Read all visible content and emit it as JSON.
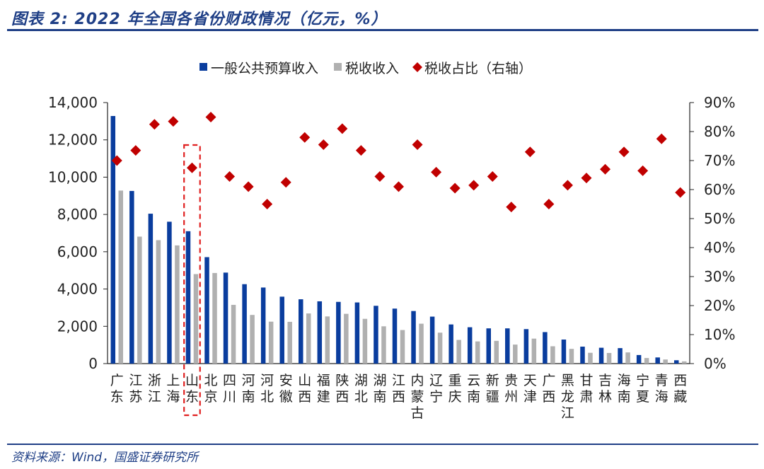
{
  "title": "图表 2:  2022 年全国各省份财政情况（亿元，%）",
  "source": "资料来源：Wind，国盛证券研究所",
  "colors": {
    "brand": "#1f3f86",
    "bar_budget": "#0a3d9e",
    "bar_tax": "#b0b0b0",
    "marker_ratio": "#c00000",
    "highlight_box": "#e02020"
  },
  "chart_data": {
    "type": "bar",
    "categories": [
      "广东",
      "江苏",
      "浙江",
      "上海",
      "山东",
      "北京",
      "四川",
      "河南",
      "河北",
      "安徽",
      "山西",
      "福建",
      "陕西",
      "湖北",
      "湖南",
      "江西",
      "内蒙古",
      "辽宁",
      "重庆",
      "云南",
      "新疆",
      "贵州",
      "天津",
      "广西",
      "黑龙江",
      "甘肃",
      "吉林",
      "海南",
      "宁夏",
      "青海",
      "西藏"
    ],
    "series": [
      {
        "name": "一般公共预算收入",
        "kind": "bar",
        "axis": "left",
        "values": [
          13280,
          9260,
          8040,
          7610,
          7100,
          5710,
          4880,
          4260,
          4080,
          3590,
          3450,
          3340,
          3310,
          3280,
          3100,
          2950,
          2820,
          2520,
          2100,
          1950,
          1890,
          1890,
          1850,
          1690,
          1290,
          910,
          850,
          830,
          460,
          330,
          180
        ]
      },
      {
        "name": "税收收入",
        "kind": "bar",
        "axis": "left",
        "values": [
          9280,
          6810,
          6620,
          6340,
          4800,
          4860,
          3150,
          2610,
          2250,
          2240,
          2690,
          2530,
          2670,
          2400,
          2000,
          1800,
          2140,
          1660,
          1270,
          1190,
          1220,
          1020,
          1340,
          930,
          790,
          580,
          570,
          600,
          300,
          220,
          120
        ]
      },
      {
        "name": "税收占比（右轴）",
        "kind": "scatter",
        "axis": "right",
        "values": [
          70,
          73.5,
          82.5,
          83.5,
          67.5,
          85,
          64.5,
          61,
          55,
          62.5,
          78,
          75.5,
          81,
          73.5,
          64.5,
          61,
          75.5,
          66,
          60.5,
          61.5,
          64.5,
          54,
          73,
          55,
          61.5,
          64,
          67,
          73,
          66.5,
          77.5,
          59
        ]
      }
    ],
    "highlight_category": "山东",
    "y_left": {
      "min": 0,
      "max": 14000,
      "ticks": [
        "0",
        "2,000",
        "4,000",
        "6,000",
        "8,000",
        "10,000",
        "12,000",
        "14,000"
      ]
    },
    "y_right": {
      "min": 0,
      "max": 90,
      "ticks": [
        "0%",
        "10%",
        "20%",
        "30%",
        "40%",
        "50%",
        "60%",
        "70%",
        "80%",
        "90%"
      ]
    },
    "legend_position": "top-center",
    "grid": false
  }
}
